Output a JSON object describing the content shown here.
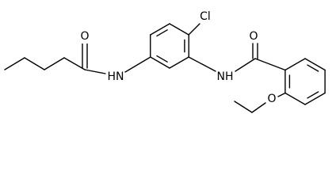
{
  "atoms": [
    {
      "label": "O"
    },
    {
      "label": "HN"
    },
    {
      "label": "Cl"
    },
    {
      "label": "NH"
    },
    {
      "label": "O"
    },
    {
      "label": "O"
    }
  ]
}
